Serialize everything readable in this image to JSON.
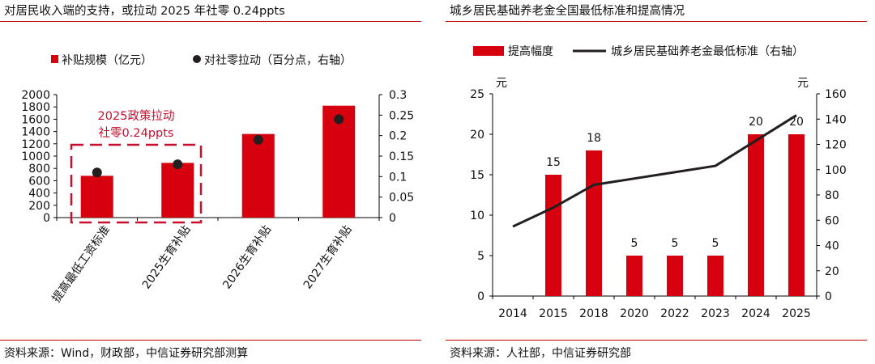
{
  "left": {
    "title": "对居民收入端的支持，或拉动 2025 年社零 0.24ppts",
    "source": "资料来源：Wind，财政部，中信证券研究部测算",
    "annotation": [
      "2025政策拉动",
      "社零0.24ppts"
    ],
    "colors": {
      "bar": "#d6000f",
      "dot": "#231f1f",
      "annotation": "#c8102e"
    }
  },
  "right": {
    "title": "城乡居民基础养老金全国最低标准和提高情况",
    "source": "资料来源：人社部，中信证券研究部",
    "left_unit": "元",
    "right_unit": "元",
    "colors": {
      "bar": "#d6000f",
      "line": "#231f1f"
    }
  },
  "chart_data": [
    {
      "type": "bar",
      "categories": [
        "提高最低工资标准",
        "2025生育补贴",
        "2026生育补贴",
        "2027生育补贴"
      ],
      "series": [
        {
          "name": "补贴规模（亿元）",
          "type": "bar",
          "axis": "left",
          "values": [
            680,
            890,
            1360,
            1820
          ]
        },
        {
          "name": "对社零拉动（百分点，右轴）",
          "type": "scatter",
          "axis": "right",
          "values": [
            0.11,
            0.13,
            0.19,
            0.24
          ]
        }
      ],
      "ylim": [
        0,
        2000
      ],
      "yticks": [
        0,
        200,
        400,
        600,
        800,
        1000,
        1200,
        1400,
        1600,
        1800,
        2000
      ],
      "y2lim": [
        0,
        0.3
      ],
      "y2ticks": [
        "0",
        "0.05",
        "0.1",
        "0.15",
        "0.2",
        "0.25",
        "0.3"
      ],
      "legend": "top",
      "grid": false
    },
    {
      "type": "bar",
      "categories": [
        "2014",
        "2015",
        "2018",
        "2020",
        "2022",
        "2023",
        "2024",
        "2025"
      ],
      "series": [
        {
          "name": "提高幅度",
          "type": "bar",
          "axis": "left",
          "values": [
            null,
            15,
            18,
            5,
            5,
            5,
            20,
            20
          ],
          "labels": [
            "",
            "15",
            "18",
            "5",
            "5",
            "5",
            "20",
            "20"
          ]
        },
        {
          "name": "城乡居民基础养老金最低标准（右轴）",
          "type": "line",
          "axis": "right",
          "values": [
            55,
            70,
            88,
            93,
            98,
            103,
            123,
            143
          ]
        }
      ],
      "ylim": [
        0,
        25
      ],
      "yticks": [
        0,
        5,
        10,
        15,
        20,
        25
      ],
      "y2lim": [
        0,
        160
      ],
      "y2ticks": [
        0,
        20,
        40,
        60,
        80,
        100,
        120,
        140,
        160
      ],
      "legend": "top",
      "grid": false
    }
  ]
}
